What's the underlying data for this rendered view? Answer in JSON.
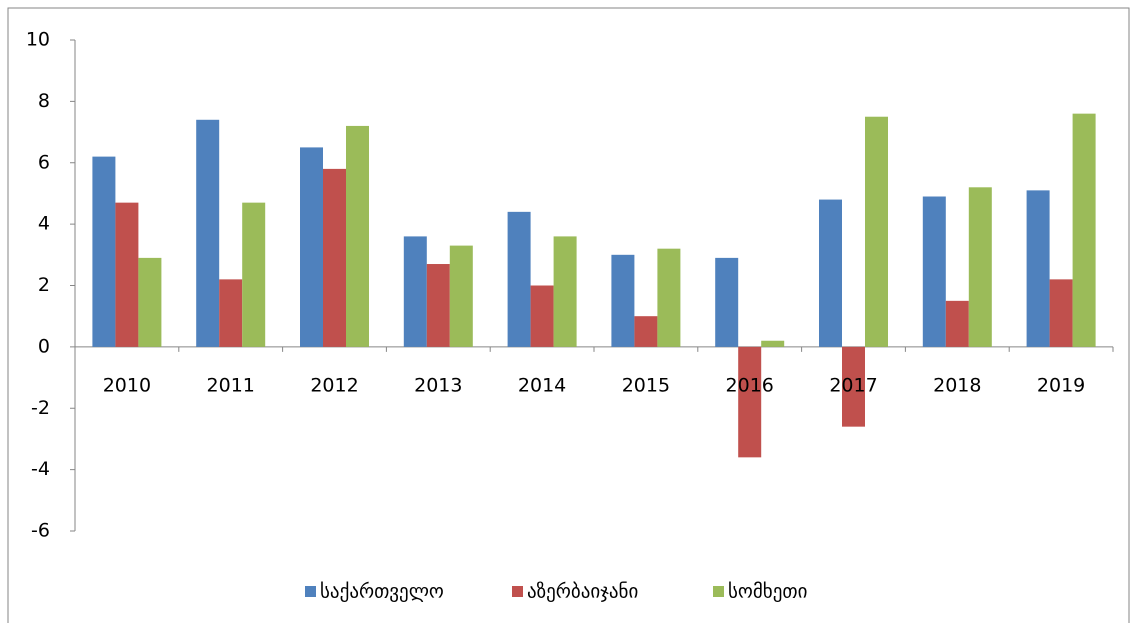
{
  "chart_data": {
    "type": "bar",
    "categories": [
      "2010",
      "2011",
      "2012",
      "2013",
      "2014",
      "2015",
      "2016",
      "2017",
      "2018",
      "2019"
    ],
    "series": [
      {
        "name": "საქართველო",
        "color": "#4f81bd",
        "values": [
          6.2,
          7.4,
          6.5,
          3.6,
          4.4,
          3.0,
          2.9,
          4.8,
          4.9,
          5.1
        ]
      },
      {
        "name": "აზერბაიჯანი",
        "color": "#c0504d",
        "values": [
          4.7,
          2.2,
          5.8,
          2.7,
          2.0,
          1.0,
          -3.6,
          -2.6,
          1.5,
          2.2
        ]
      },
      {
        "name": "სომხეთი",
        "color": "#9bbb59",
        "values": [
          2.9,
          4.7,
          7.2,
          3.3,
          3.6,
          3.2,
          0.2,
          7.5,
          5.2,
          7.6
        ]
      }
    ],
    "ylim": [
      -6,
      10
    ],
    "yticks": [
      -6,
      -4,
      -2,
      0,
      2,
      4,
      6,
      8,
      10
    ],
    "legend": "bottom"
  }
}
